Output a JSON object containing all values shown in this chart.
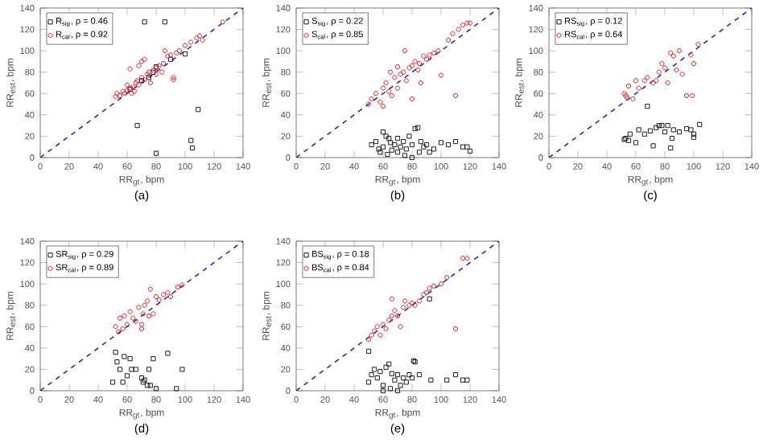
{
  "chart_data": [
    {
      "type": "scatter",
      "xlabel": "RR$_{gt}$, bpm",
      "ylabel": "RR$_{est}$, bpm",
      "annotations": [
        "(a)"
      ],
      "xlim": [
        0,
        140
      ],
      "ylim": [
        0,
        140
      ],
      "xticks": [
        0,
        20,
        40,
        60,
        80,
        100,
        120,
        140
      ],
      "yticks": [
        0,
        20,
        40,
        60,
        80,
        100,
        120,
        140
      ],
      "legend": "top left",
      "series": [
        {
          "name": "R$_{sig}$, ρ = 0.46",
          "color": "#1a1a1a",
          "marker": "square",
          "x": [
            72,
            86,
            67,
            80,
            104,
            105,
            109,
            80,
            78,
            100,
            75,
            70,
            62,
            90
          ],
          "values": [
            127,
            127,
            30,
            4,
            16,
            9,
            45,
            85,
            80,
            97,
            75,
            72,
            64,
            92
          ]
        },
        {
          "name": "R$_{cal}$, ρ = 0.92",
          "color": "#e8141c",
          "marker": "circle",
          "x": [
            52,
            53,
            55,
            57,
            58,
            60,
            60,
            62,
            63,
            64,
            65,
            66,
            67,
            68,
            70,
            70,
            72,
            72,
            74,
            75,
            76,
            78,
            80,
            80,
            82,
            84,
            85,
            86,
            88,
            90,
            92,
            92,
            94,
            96,
            100,
            104,
            108,
            110,
            112,
            126,
            62,
            68
          ],
          "values": [
            57,
            60,
            58,
            62,
            60,
            63,
            68,
            65,
            60,
            66,
            62,
            70,
            72,
            68,
            75,
            90,
            73,
            92,
            78,
            80,
            70,
            82,
            84,
            78,
            86,
            80,
            88,
            100,
            95,
            96,
            75,
            73,
            98,
            100,
            105,
            108,
            112,
            114,
            110,
            127,
            83,
            86
          ]
        },
        {
          "type": "line",
          "color": "#2a2ab8",
          "marker": "none",
          "line_style": "dashed",
          "x": [
            0,
            140
          ],
          "values": [
            0,
            140
          ]
        }
      ]
    },
    {
      "type": "scatter",
      "xlabel": "RR$_{gt}$, bpm",
      "ylabel": "RR$_{est}$, bpm",
      "annotations": [
        "(b)"
      ],
      "xlim": [
        0,
        140
      ],
      "ylim": [
        0,
        140
      ],
      "xticks": [
        0,
        20,
        40,
        60,
        80,
        100,
        120,
        140
      ],
      "yticks": [
        0,
        20,
        40,
        60,
        80,
        100,
        120,
        140
      ],
      "legend": "top left",
      "series": [
        {
          "name": "S$_{sig}$, ρ = 0.22",
          "color": "#1a1a1a",
          "marker": "square",
          "x": [
            52,
            55,
            57,
            58,
            60,
            62,
            63,
            65,
            66,
            68,
            70,
            70,
            72,
            74,
            75,
            76,
            78,
            80,
            82,
            84,
            85,
            86,
            88,
            90,
            95,
            100,
            105,
            110,
            115,
            118,
            120,
            60,
            64,
            80,
            92
          ],
          "values": [
            12,
            15,
            8,
            5,
            10,
            20,
            3,
            14,
            7,
            12,
            18,
            5,
            10,
            15,
            2,
            8,
            20,
            12,
            27,
            28,
            5,
            15,
            10,
            12,
            8,
            14,
            12,
            15,
            10,
            10,
            6,
            24,
            18,
            0,
            5
          ]
        },
        {
          "name": "S$_{cal}$, ρ = 0.85",
          "color": "#e8141c",
          "marker": "circle",
          "x": [
            50,
            52,
            55,
            58,
            60,
            60,
            62,
            64,
            65,
            66,
            68,
            70,
            70,
            72,
            74,
            75,
            76,
            78,
            80,
            80,
            82,
            84,
            85,
            86,
            88,
            90,
            92,
            95,
            98,
            100,
            105,
            108,
            110,
            112,
            115,
            118,
            120
          ],
          "values": [
            50,
            55,
            60,
            52,
            65,
            48,
            70,
            62,
            80,
            58,
            75,
            85,
            65,
            78,
            80,
            100,
            72,
            84,
            86,
            55,
            90,
            82,
            88,
            70,
            95,
            92,
            96,
            98,
            100,
            77,
            110,
            116,
            58,
            120,
            124,
            126,
            126
          ]
        },
        {
          "type": "line",
          "color": "#2a2ab8",
          "marker": "none",
          "line_style": "dashed",
          "x": [
            0,
            140
          ],
          "values": [
            0,
            140
          ]
        }
      ]
    },
    {
      "type": "scatter",
      "xlabel": "RR$_{gt}$, bpm",
      "ylabel": "RR$_{est}$, bpm",
      "annotations": [
        "(c)"
      ],
      "xlim": [
        0,
        140
      ],
      "ylim": [
        0,
        140
      ],
      "xticks": [
        0,
        20,
        40,
        60,
        80,
        100,
        120,
        140
      ],
      "yticks": [
        0,
        20,
        40,
        60,
        80,
        100,
        120,
        140
      ],
      "legend": "top left",
      "series": [
        {
          "name": "RS$_{sig}$, ρ = 0.12",
          "color": "#1a1a1a",
          "marker": "square",
          "x": [
            52,
            53,
            55,
            56,
            60,
            62,
            66,
            68,
            70,
            72,
            74,
            76,
            78,
            80,
            82,
            84,
            85,
            86,
            90,
            95,
            98,
            100,
            100,
            104
          ],
          "values": [
            17,
            18,
            16,
            22,
            14,
            26,
            22,
            48,
            25,
            11,
            28,
            30,
            30,
            24,
            30,
            9,
            18,
            26,
            24,
            27,
            26,
            22,
            19,
            31
          ]
        },
        {
          "name": "RS$_{cal}$, ρ = 0.64",
          "color": "#e8141c",
          "marker": "circle",
          "x": [
            52,
            53,
            54,
            55,
            58,
            60,
            62,
            66,
            68,
            72,
            74,
            76,
            78,
            80,
            82,
            84,
            86,
            88,
            90,
            92,
            95,
            98,
            99,
            100,
            103
          ],
          "values": [
            60,
            58,
            56,
            67,
            55,
            72,
            65,
            72,
            75,
            70,
            72,
            80,
            88,
            84,
            70,
            98,
            95,
            82,
            100,
            78,
            58,
            96,
            58,
            88,
            106
          ]
        },
        {
          "type": "line",
          "color": "#2a2ab8",
          "marker": "none",
          "line_style": "dashed",
          "x": [
            0,
            140
          ],
          "values": [
            0,
            140
          ]
        }
      ]
    },
    {
      "type": "scatter",
      "xlabel": "RR$_{gt}$, bpm",
      "ylabel": "RR$_{est}$, bpm",
      "annotations": [
        "(d)"
      ],
      "xlim": [
        0,
        140
      ],
      "ylim": [
        0,
        140
      ],
      "xticks": [
        0,
        20,
        40,
        60,
        80,
        100,
        120,
        140
      ],
      "yticks": [
        0,
        20,
        40,
        60,
        80,
        100,
        120,
        140
      ],
      "legend": "top left",
      "series": [
        {
          "name": "SR$_{sig}$, ρ = 0.29",
          "color": "#1a1a1a",
          "marker": "square",
          "x": [
            50,
            52,
            53,
            55,
            57,
            58,
            60,
            62,
            63,
            66,
            70,
            71,
            72,
            74,
            75,
            76,
            78,
            80,
            88,
            94,
            98
          ],
          "values": [
            8,
            36,
            27,
            20,
            8,
            32,
            14,
            30,
            20,
            20,
            12,
            8,
            10,
            5,
            20,
            5,
            30,
            2,
            35,
            2,
            20
          ]
        },
        {
          "name": "SR$_{cal}$, ρ = 0.89",
          "color": "#e8141c",
          "marker": "circle",
          "x": [
            52,
            54,
            55,
            57,
            58,
            60,
            62,
            64,
            66,
            68,
            70,
            71,
            72,
            74,
            75,
            76,
            78,
            80,
            82,
            85,
            88,
            90,
            95,
            98,
            70
          ],
          "values": [
            60,
            55,
            68,
            58,
            70,
            62,
            74,
            68,
            65,
            78,
            58,
            72,
            80,
            84,
            70,
            95,
            72,
            88,
            85,
            90,
            92,
            88,
            97,
            99,
            62
          ]
        },
        {
          "type": "line",
          "color": "#2a2ab8",
          "marker": "none",
          "line_style": "dashed",
          "x": [
            0,
            140
          ],
          "values": [
            0,
            140
          ]
        }
      ]
    },
    {
      "type": "scatter",
      "xlabel": "RR$_{gt}$, bpm",
      "ylabel": "RR$_{est}$, bpm",
      "annotations": [
        "(e)"
      ],
      "xlim": [
        0,
        140
      ],
      "ylim": [
        0,
        140
      ],
      "xticks": [
        0,
        20,
        40,
        60,
        80,
        100,
        120,
        140
      ],
      "yticks": [
        0,
        20,
        40,
        60,
        80,
        100,
        120,
        140
      ],
      "legend": "top left",
      "series": [
        {
          "name": "BS$_{sig}$, ρ = 0.18",
          "color": "#1a1a1a",
          "marker": "square",
          "x": [
            50,
            50,
            52,
            54,
            56,
            58,
            60,
            62,
            64,
            65,
            66,
            68,
            70,
            72,
            74,
            76,
            78,
            80,
            81,
            82,
            85,
            92,
            93,
            104,
            110,
            115,
            118,
            60,
            70
          ],
          "values": [
            37,
            8,
            15,
            20,
            12,
            18,
            5,
            22,
            25,
            2,
            16,
            10,
            15,
            5,
            12,
            8,
            15,
            12,
            28,
            27,
            15,
            86,
            10,
            10,
            15,
            10,
            10,
            0,
            0
          ]
        },
        {
          "name": "BS$_{cal}$, ρ = 0.84",
          "color": "#e8141c",
          "marker": "circle",
          "x": [
            50,
            52,
            54,
            56,
            58,
            60,
            62,
            64,
            66,
            66,
            68,
            70,
            72,
            74,
            75,
            78,
            80,
            82,
            85,
            88,
            90,
            92,
            95,
            100,
            104,
            110,
            115,
            118
          ],
          "values": [
            48,
            52,
            56,
            60,
            52,
            62,
            58,
            66,
            70,
            86,
            75,
            70,
            60,
            78,
            84,
            80,
            82,
            80,
            84,
            90,
            92,
            96,
            98,
            100,
            106,
            58,
            124,
            124
          ]
        },
        {
          "type": "line",
          "color": "#2a2ab8",
          "marker": "none",
          "line_style": "dashed",
          "x": [
            0,
            140
          ],
          "values": [
            0,
            140
          ]
        }
      ]
    }
  ]
}
